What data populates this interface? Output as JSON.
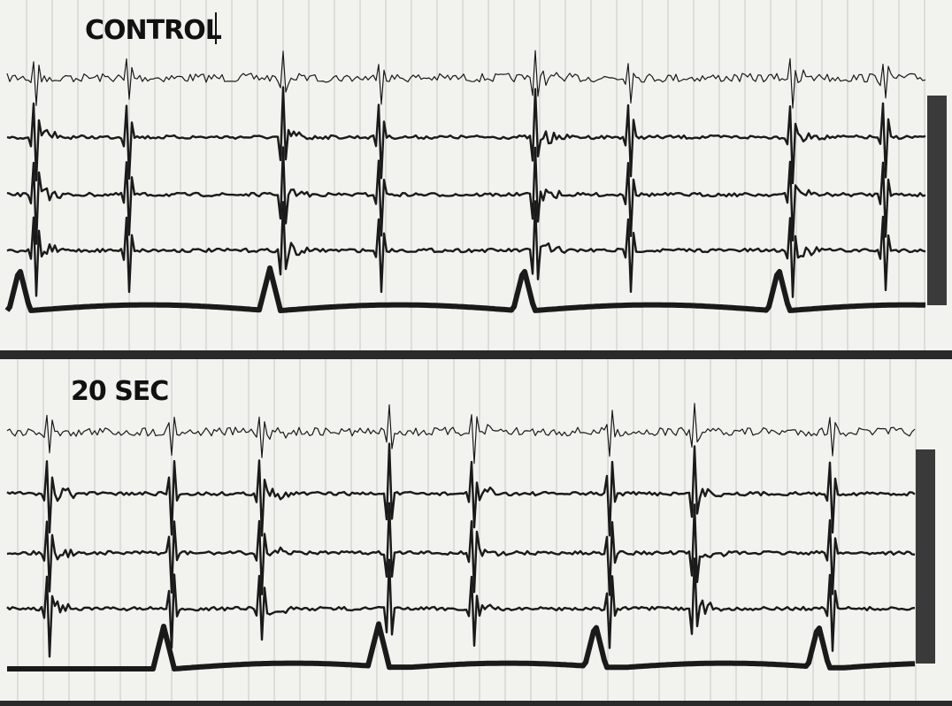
{
  "panels": [
    {
      "label": "CONTROL"
    },
    {
      "label": "20 SEC"
    }
  ]
}
